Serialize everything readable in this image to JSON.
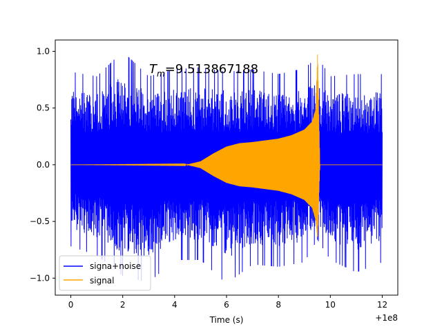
{
  "chart_data": {
    "type": "line",
    "title": "",
    "xlabel": "Time (s)",
    "ylabel": "",
    "x_offset_label": "+1e8",
    "xlim": [
      -0.6,
      12.6
    ],
    "ylim": [
      -1.15,
      1.1
    ],
    "x_ticks": [
      0,
      2,
      4,
      6,
      8,
      10,
      12
    ],
    "x_tick_labels": [
      "0",
      "2",
      "4",
      "6",
      "8",
      "10",
      "12"
    ],
    "y_ticks": [
      -1.0,
      -0.5,
      0.0,
      0.5,
      1.0
    ],
    "y_tick_labels": [
      "−1.0",
      "−0.5",
      "0.0",
      "0.5",
      "1.0"
    ],
    "annotation": {
      "text": "T",
      "sub": "m",
      "value": "=9.513867188"
    },
    "legend": {
      "position": "lower-left",
      "entries": [
        {
          "label": "signa+noise",
          "color": "#0000ff"
        },
        {
          "label": "signal",
          "color": "#ffa500"
        }
      ]
    },
    "series": [
      {
        "name": "signa+noise",
        "color": "#0000ff",
        "x_range": [
          0,
          12
        ],
        "envelope_x": [
          0,
          1,
          2,
          3,
          4,
          5,
          6,
          7,
          8,
          9,
          9.5,
          10,
          11,
          12
        ],
        "envelope_max": [
          0.82,
          0.78,
          1.0,
          0.78,
          0.84,
          0.86,
          0.82,
          0.84,
          0.8,
          0.85,
          0.95,
          0.78,
          0.8,
          0.8
        ],
        "envelope_min": [
          -0.72,
          -0.8,
          -0.98,
          -1.04,
          -0.84,
          -0.84,
          -1.05,
          -0.88,
          -0.9,
          -0.86,
          -0.66,
          -0.84,
          -0.95,
          -0.86
        ]
      },
      {
        "name": "signal",
        "color": "#ffa500",
        "x_range": [
          0,
          12
        ],
        "envelope_x": [
          0,
          4.5,
          5.0,
          5.5,
          6.0,
          6.5,
          7.0,
          8.0,
          8.5,
          9.0,
          9.3,
          9.45,
          9.51,
          9.6,
          10,
          12
        ],
        "envelope_max": [
          0.0,
          0.003,
          0.03,
          0.1,
          0.16,
          0.19,
          0.2,
          0.23,
          0.26,
          0.31,
          0.38,
          0.5,
          1.0,
          0.0,
          0.0,
          0.0
        ],
        "envelope_min": [
          0.0,
          -0.003,
          -0.03,
          -0.1,
          -0.16,
          -0.19,
          -0.2,
          -0.23,
          -0.26,
          -0.31,
          -0.38,
          -0.5,
          -0.66,
          0.0,
          0.0,
          0.0
        ]
      }
    ]
  }
}
